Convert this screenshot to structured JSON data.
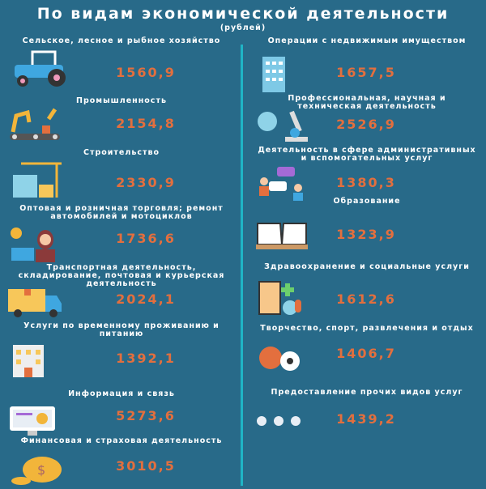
{
  "header": {
    "title": "По видам экономической деятельности",
    "subtitle": "(рублей)"
  },
  "colors": {
    "background": "#286a89",
    "value": "#e36f3e",
    "divider": "#1fb5c6"
  },
  "left": [
    {
      "label": "Сельское, лесное и рыбное хозяйство",
      "value": "1560,9",
      "icon": "tractor-icon"
    },
    {
      "label": "Промышленность",
      "value": "2154,8",
      "icon": "robot-arm-icon"
    },
    {
      "label": "Строительство",
      "value": "2330,9",
      "icon": "crane-icon"
    },
    {
      "label": "Оптовая и розничная торговля; ремонт автомобилей и мотоциклов",
      "value": "1736,6",
      "icon": "cashier-icon"
    },
    {
      "label": "Транспортная деятельность, складирование, почтовая и курьерская деятельность",
      "value": "2024,1",
      "icon": "truck-icon"
    },
    {
      "label": "Услуги по временному проживанию и питанию",
      "value": "1392,1",
      "icon": "hotel-icon"
    },
    {
      "label": "Информация и связь",
      "value": "5273,6",
      "icon": "monitor-icon"
    },
    {
      "label": "Финансовая и страховая деятельность",
      "value": "3010,5",
      "icon": "money-icon"
    }
  ],
  "right": [
    {
      "label": "Операции с недвижимым имуществом",
      "value": "1657,5",
      "icon": "building-icon"
    },
    {
      "label": "Профессиональная, научная и техническая деятельность",
      "value": "2526,9",
      "icon": "microscope-icon"
    },
    {
      "label": "Деятельность в сфере административных и вспомогательных услуг",
      "value": "1380,3",
      "icon": "chat-people-icon"
    },
    {
      "label": "Образование",
      "value": "1323,9",
      "icon": "book-icon"
    },
    {
      "label": "Здравоохранение и социальные услуги",
      "value": "1612,6",
      "icon": "hospital-icon"
    },
    {
      "label": "Творчество, спорт, развлечения и отдых",
      "value": "1406,7",
      "icon": "balls-icon"
    },
    {
      "label": "Предоставление прочих видов услуг",
      "value": "1439,2",
      "icon": "dots-icon"
    }
  ]
}
